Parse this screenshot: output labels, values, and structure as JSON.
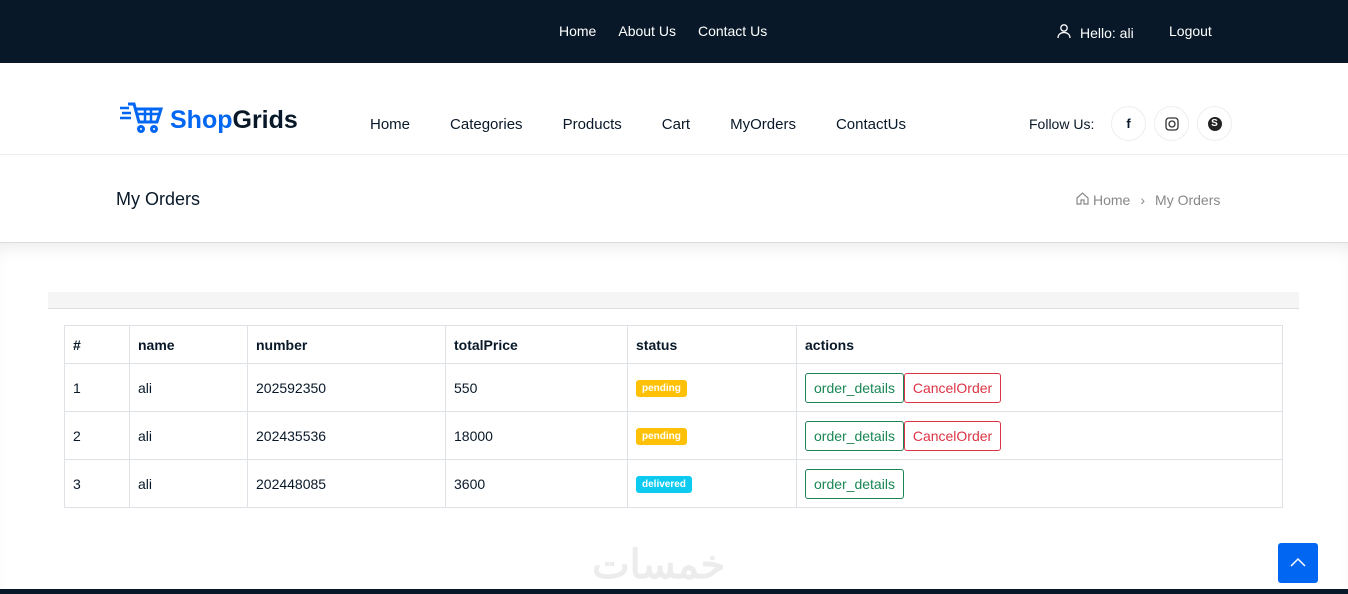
{
  "topbar": {
    "links": [
      "Home",
      "About Us",
      "Contact Us"
    ],
    "greeting": "Hello: ali",
    "logout": "Logout"
  },
  "brand": {
    "part1": "Shop",
    "part2": "Grids",
    "color": "#0167f3"
  },
  "nav": [
    "Home",
    "Categories",
    "Products",
    "Cart",
    "MyOrders",
    "ContactUs"
  ],
  "follow_label": "Follow Us:",
  "social": [
    "facebook-icon",
    "instagram-icon",
    "skype-icon"
  ],
  "page_title": "My Orders",
  "breadcrumb": {
    "home": "Home",
    "current": "My Orders"
  },
  "table": {
    "headers": [
      "#",
      "name",
      "number",
      "totalPrice",
      "status",
      "actions"
    ],
    "rows": [
      {
        "id": "1",
        "name": "ali",
        "number": "202592350",
        "total": "550",
        "status": "pending",
        "details": "order_details",
        "cancel": "CancelOrder"
      },
      {
        "id": "2",
        "name": "ali",
        "number": "202435536",
        "total": "18000",
        "status": "pending",
        "details": "order_details",
        "cancel": "CancelOrder"
      },
      {
        "id": "3",
        "name": "ali",
        "number": "202448085",
        "total": "3600",
        "status": "delivered",
        "details": "order_details"
      }
    ]
  },
  "watermark": "خمسات",
  "colors": {
    "pending": "#ffc107",
    "delivered": "#0dcaf0",
    "details": "#198754",
    "cancel": "#dc3545"
  }
}
